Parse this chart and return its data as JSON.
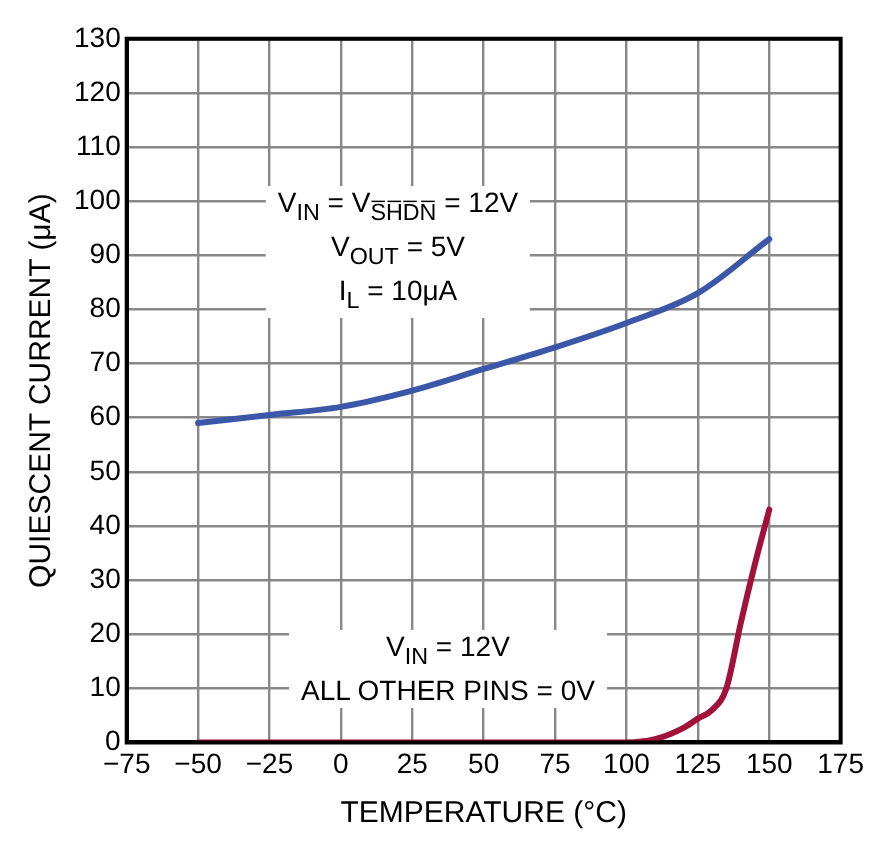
{
  "chart_data": {
    "type": "line",
    "xlabel": "TEMPERATURE (°C)",
    "ylabel": "QUIESCENT CURRENT (μA)",
    "xlim": [
      -75,
      175
    ],
    "xticks": [
      -75,
      -50,
      -25,
      0,
      25,
      50,
      75,
      100,
      125,
      150,
      175
    ],
    "ylim": [
      0,
      130
    ],
    "yticks": [
      0,
      10,
      20,
      30,
      40,
      50,
      60,
      70,
      80,
      90,
      100,
      110,
      120,
      130
    ],
    "grid": true,
    "legend": false,
    "marker": "none",
    "line_style": "solid",
    "series": [
      {
        "color": "#3a57a8",
        "x": [
          -50,
          -25,
          0,
          25,
          50,
          75,
          100,
          125,
          150
        ],
        "values": [
          59,
          60.5,
          62,
          65,
          69,
          73,
          77.5,
          83,
          93
        ]
      },
      {
        "color": "#a0123a",
        "x": [
          -50,
          0,
          50,
          100,
          110,
          120,
          125,
          130,
          135,
          140,
          145,
          150
        ],
        "values": [
          0,
          0,
          0,
          0,
          0.6,
          2.7,
          4.4,
          6,
          10,
          22,
          33,
          43
        ]
      }
    ],
    "annotations": [
      "V$_{IN}$ = V$_{S̅H̅D̅N̅}$ = 12V\nV$_{OUT}$ = 5V\nI$_{L}$ = 10μA",
      "V$_{IN}$ = 12V\nALL OTHER PINS = 0V"
    ]
  }
}
